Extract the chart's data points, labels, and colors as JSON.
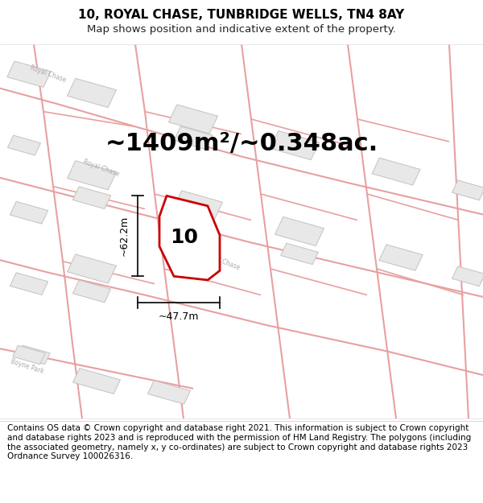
{
  "title": "10, ROYAL CHASE, TUNBRIDGE WELLS, TN4 8AY",
  "subtitle": "Map shows position and indicative extent of the property.",
  "area_text": "~1409m²/~0.348ac.",
  "label_number": "10",
  "dim_height": "~62.2m",
  "dim_width": "~47.7m",
  "footnote": "Contains OS data © Crown copyright and database right 2021. This information is subject to Crown copyright and database rights 2023 and is reproduced with the permission of HM Land Registry. The polygons (including the associated geometry, namely x, y co-ordinates) are subject to Crown copyright and database rights 2023 Ordnance Survey 100026316.",
  "map_bg": "#f7f5f5",
  "road_color": "#e8a0a0",
  "building_fc": "#e8e8e8",
  "building_ec": "#c8c0c0",
  "property_color": "#cc0000",
  "street_label_color": "#b0a8a8",
  "title_fontsize": 11,
  "subtitle_fontsize": 9.5,
  "area_fontsize": 22,
  "num_fontsize": 18,
  "dim_fontsize": 9,
  "footnote_fontsize": 7.5
}
